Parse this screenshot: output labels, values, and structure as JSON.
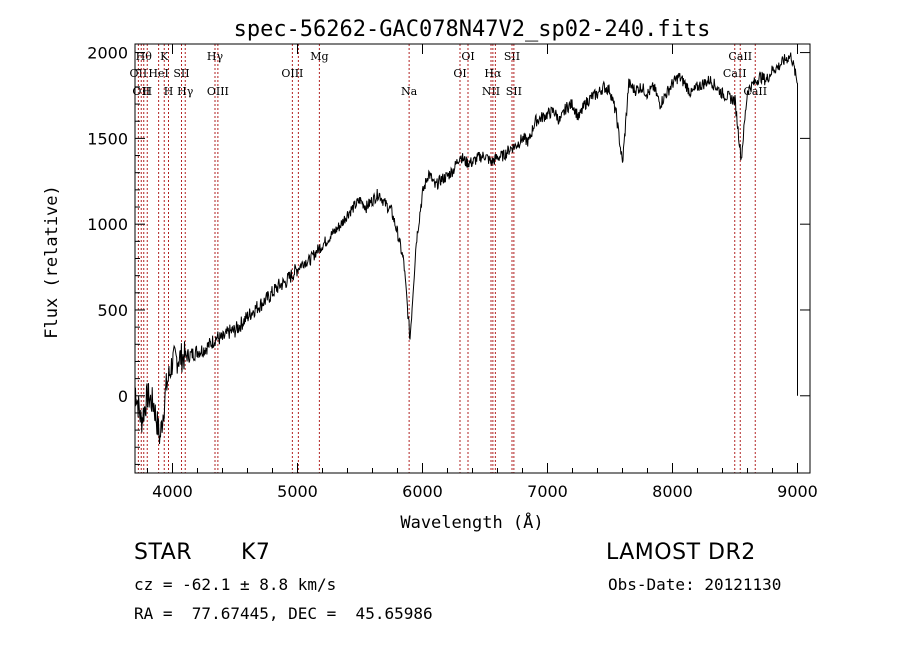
{
  "chart_data": {
    "type": "line",
    "title": "spec-56262-GAC078N47V2_sp02-240.fits",
    "xlabel": "Wavelength (Å)",
    "ylabel": "Flux (relative)",
    "xlim": [
      3700,
      9100
    ],
    "ylim": [
      -450,
      2050
    ],
    "xticks": [
      4000,
      5000,
      6000,
      7000,
      8000,
      9000
    ],
    "xtick_labels": [
      "4000",
      "5000",
      "6000",
      "7000",
      "8000",
      "9000"
    ],
    "yticks": [
      0,
      500,
      1000,
      1500,
      2000
    ],
    "ytick_labels": [
      "0",
      "500",
      "1000",
      "1500",
      "2000"
    ],
    "grid": false,
    "line_color": "#000000",
    "marker_line_color": "#b22222",
    "series": [
      {
        "x": [
          3700,
          3750,
          3800,
          3850,
          3900,
          3950,
          4000,
          4050,
          4100,
          4150,
          4200,
          4250,
          4300,
          4350,
          4400,
          4450,
          4500,
          4550,
          4600,
          4650,
          4700,
          4750,
          4800,
          4850,
          4900,
          4950,
          5000,
          5050,
          5100,
          5150,
          5200,
          5250,
          5300,
          5350,
          5400,
          5450,
          5500,
          5550,
          5600,
          5650,
          5700,
          5750,
          5800,
          5850,
          5900,
          5950,
          6000,
          6050,
          6100,
          6150,
          6200,
          6250,
          6300,
          6350,
          6400,
          6450,
          6500,
          6550,
          6600,
          6650,
          6700,
          6750,
          6800,
          6850,
          6900,
          6950,
          7000,
          7050,
          7100,
          7150,
          7200,
          7250,
          7300,
          7350,
          7400,
          7450,
          7500,
          7550,
          7600,
          7650,
          7700,
          7750,
          7800,
          7850,
          7900,
          7950,
          8000,
          8050,
          8100,
          8150,
          8200,
          8250,
          8300,
          8350,
          8400,
          8450,
          8500,
          8550,
          8600,
          8650,
          8700,
          8750,
          8800,
          8850,
          8900,
          8950,
          9000
        ],
        "y": [
          50,
          -150,
          0,
          -50,
          -250,
          50,
          200,
          220,
          230,
          240,
          260,
          270,
          300,
          340,
          330,
          370,
          380,
          420,
          460,
          500,
          530,
          560,
          600,
          640,
          660,
          700,
          740,
          780,
          790,
          840,
          880,
          920,
          960,
          1000,
          1060,
          1100,
          1140,
          1100,
          1140,
          1180,
          1120,
          1080,
          950,
          780,
          330,
          900,
          1180,
          1300,
          1220,
          1260,
          1280,
          1320,
          1400,
          1360,
          1360,
          1390,
          1400,
          1360,
          1390,
          1400,
          1440,
          1460,
          1500,
          1480,
          1600,
          1620,
          1640,
          1660,
          1600,
          1680,
          1700,
          1620,
          1700,
          1740,
          1760,
          1800,
          1780,
          1640,
          1350,
          1820,
          1780,
          1800,
          1760,
          1800,
          1700,
          1760,
          1820,
          1860,
          1820,
          1760,
          1800,
          1820,
          1840,
          1800,
          1760,
          1740,
          1720,
          1380,
          1780,
          1820,
          1860,
          1840,
          1900,
          1920,
          1960,
          1980,
          1820
        ]
      }
    ],
    "lines": [
      {
        "wl": 3727,
        "label": "OII",
        "row": 2
      },
      {
        "wl": 3750,
        "label": "OII",
        "row": 3
      },
      {
        "wl": 3770,
        "label": "Hθ",
        "row": 1
      },
      {
        "wl": 3798,
        "label": "H",
        "row": 3
      },
      {
        "wl": 3889,
        "label": "HeI",
        "row": 2
      },
      {
        "wl": 3934,
        "label": "K",
        "row": 1
      },
      {
        "wl": 3968,
        "label": "H",
        "row": 3
      },
      {
        "wl": 4072,
        "label": "SII",
        "row": 2
      },
      {
        "wl": 4102,
        "label": "Hγ",
        "row": 3
      },
      {
        "wl": 4340,
        "label": "Hγ",
        "row": 1
      },
      {
        "wl": 4363,
        "label": "OIII",
        "row": 3
      },
      {
        "wl": 4959,
        "label": "OIII",
        "row": 2
      },
      {
        "wl": 5007,
        "label": "",
        "row": 0
      },
      {
        "wl": 5175,
        "label": "Mg",
        "row": 1
      },
      {
        "wl": 5893,
        "label": "Na",
        "row": 3
      },
      {
        "wl": 6300,
        "label": "OI",
        "row": 2
      },
      {
        "wl": 6364,
        "label": "OI",
        "row": 1
      },
      {
        "wl": 6548,
        "label": "NII",
        "row": 3
      },
      {
        "wl": 6563,
        "label": "Hα",
        "row": 2
      },
      {
        "wl": 6583,
        "label": "",
        "row": 0
      },
      {
        "wl": 6716,
        "label": "SII",
        "row": 1
      },
      {
        "wl": 6731,
        "label": "SII",
        "row": 3
      },
      {
        "wl": 8498,
        "label": "CaII",
        "row": 2
      },
      {
        "wl": 8542,
        "label": "CaII",
        "row": 1
      },
      {
        "wl": 8662,
        "label": "CaII",
        "row": 3
      }
    ]
  },
  "info": {
    "class_label": "STAR",
    "subclass": "K7",
    "survey": "LAMOST DR2",
    "cz": "cz = -62.1 ± 8.8 km/s",
    "obs_date": "Obs-Date: 20121130",
    "coords": "RA =  77.67445, DEC =  45.65986"
  }
}
